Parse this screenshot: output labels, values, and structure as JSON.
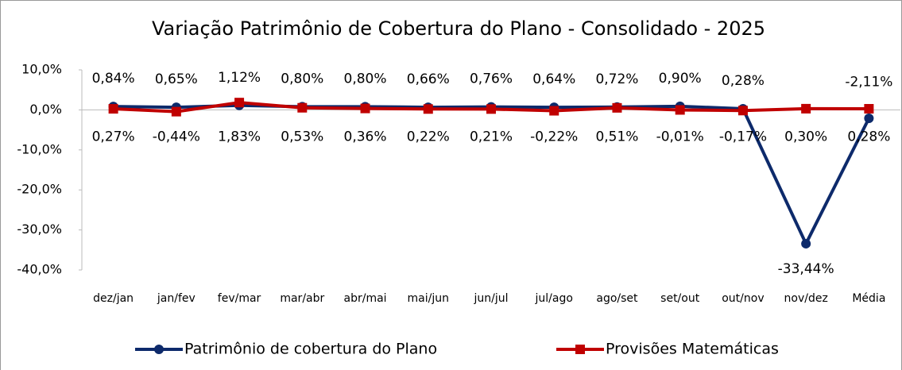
{
  "chart_data": {
    "type": "line",
    "title": "Variação Patrimônio de Cobertura do Plano - Consolidado - 2025",
    "categories": [
      "dez/jan",
      "jan/fev",
      "fev/mar",
      "mar/abr",
      "abr/mai",
      "mai/jun",
      "jun/jul",
      "jul/ago",
      "ago/set",
      "set/out",
      "out/nov",
      "nov/dez",
      "Média"
    ],
    "series": [
      {
        "name": "Patrimônio de cobertura do Plano",
        "color": "#0d2a6b",
        "marker": "circle",
        "values": [
          0.84,
          0.65,
          1.12,
          0.8,
          0.8,
          0.66,
          0.76,
          0.64,
          0.72,
          0.9,
          0.28,
          -33.44,
          -2.11
        ],
        "value_labels": [
          "0,84%",
          "0,65%",
          "1,12%",
          "0,80%",
          "0,80%",
          "0,66%",
          "0,76%",
          "0,64%",
          "0,72%",
          "0,90%",
          "0,28%",
          "-33,44%",
          "-2,11%"
        ]
      },
      {
        "name": "Provisões Matemáticas",
        "color": "#c00000",
        "marker": "square",
        "values": [
          0.27,
          -0.44,
          1.83,
          0.53,
          0.36,
          0.22,
          0.21,
          -0.22,
          0.51,
          -0.01,
          -0.17,
          0.3,
          0.28
        ],
        "value_labels": [
          "0,27%",
          "-0,44%",
          "1,83%",
          "0,53%",
          "0,36%",
          "0,22%",
          "0,21%",
          "-0,22%",
          "0,51%",
          "-0,01%",
          "-0,17%",
          "0,30%",
          "0,28%"
        ]
      }
    ],
    "ylim": [
      -40,
      10
    ],
    "yticks": [
      {
        "value": 10,
        "label": "10,0%"
      },
      {
        "value": 0,
        "label": "0,0%"
      },
      {
        "value": -10,
        "label": "-10,0%"
      },
      {
        "value": -20,
        "label": "-20,0%"
      },
      {
        "value": -30,
        "label": "-30,0%"
      },
      {
        "value": -40,
        "label": "-40,0%"
      }
    ],
    "grid": false,
    "legend": "bottom"
  }
}
